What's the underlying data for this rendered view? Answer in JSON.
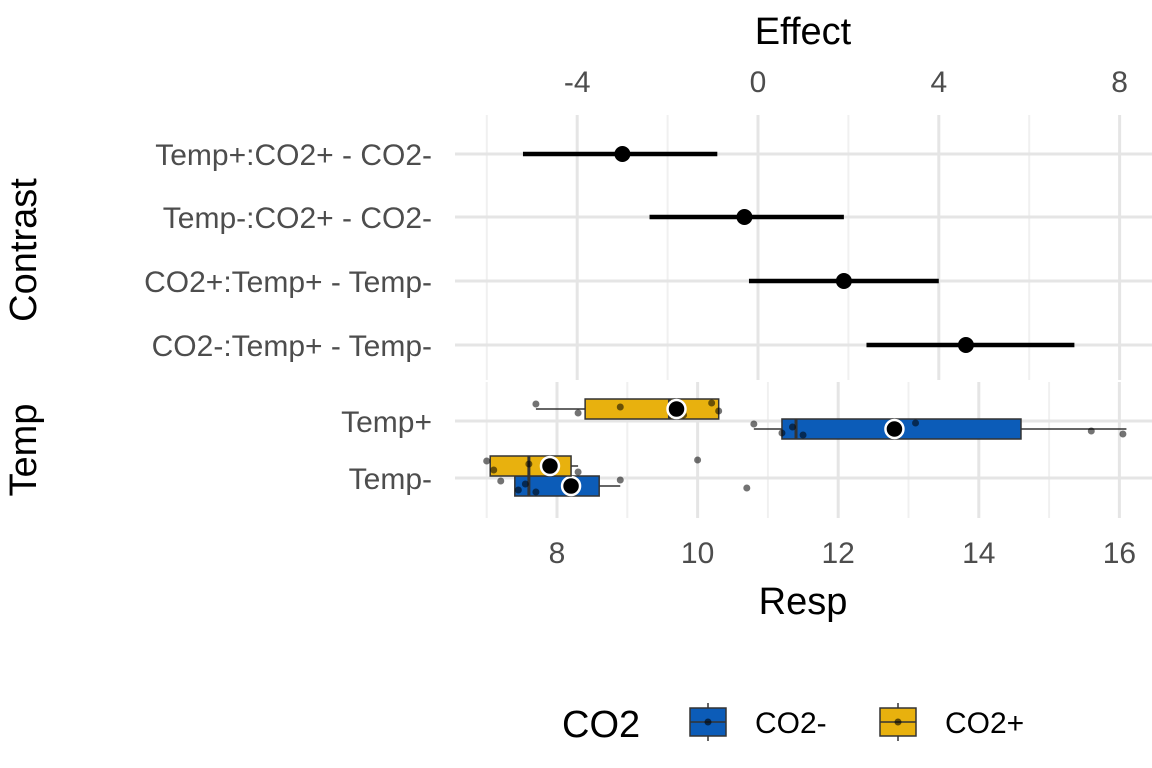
{
  "chart_data": [
    {
      "type": "errorbar",
      "panel": "top",
      "xlabel": "Effect",
      "ylabel": "Contrast",
      "xlim": [
        -6.8,
        8.9
      ],
      "xticks": [
        -4,
        0,
        4,
        8
      ],
      "xtick_labels": [
        "-4",
        "0",
        "4",
        "8"
      ],
      "categories": [
        "Temp+:CO2+ - CO2-",
        "Temp-:CO2+ - CO2-",
        "CO2+:Temp+ - Temp-",
        "CO2-:Temp+ - Temp-"
      ],
      "estimates": [
        -3.0,
        -0.3,
        1.9,
        4.6
      ],
      "lower": [
        -5.2,
        -2.4,
        -0.2,
        2.4
      ],
      "upper": [
        -0.9,
        1.9,
        4.0,
        7.0
      ],
      "grid": true
    },
    {
      "type": "boxplot",
      "panel": "bottom",
      "xlabel": "Resp",
      "ylabel": "Temp",
      "xlim": [
        6.8,
        16.3
      ],
      "xticks": [
        8,
        10,
        12,
        14,
        16
      ],
      "xtick_labels": [
        "8",
        "10",
        "12",
        "14",
        "16"
      ],
      "categories": [
        "Temp+",
        "Temp-"
      ],
      "legend": {
        "title": "CO2",
        "entries": [
          "CO2-",
          "CO2+"
        ],
        "position": "bottom"
      },
      "grid": true,
      "series": [
        {
          "name": "CO2-",
          "color": "#0c5cb8",
          "boxes": [
            {
              "category": "Temp+",
              "whisker_low": 10.8,
              "q1": 11.2,
              "median": 11.4,
              "q3": 14.6,
              "whisker_high": 16.1,
              "mean": 12.8,
              "points": [
                10.8,
                11.2,
                11.35,
                11.5,
                13.1,
                15.6,
                16.05
              ]
            },
            {
              "category": "Temp-",
              "whisker_low": 7.4,
              "q1": 7.4,
              "median": 7.6,
              "q3": 8.6,
              "whisker_high": 8.9,
              "mean": 8.2,
              "points": [
                7.2,
                7.45,
                7.55,
                7.7,
                8.9,
                10.7
              ]
            }
          ]
        },
        {
          "name": "CO2+",
          "color": "#e8b10e",
          "boxes": [
            {
              "category": "Temp+",
              "whisker_low": 7.7,
              "q1": 8.4,
              "median": 9.6,
              "q3": 10.3,
              "whisker_high": 10.3,
              "mean": 9.7,
              "points": [
                7.7,
                8.3,
                8.9,
                9.8,
                10.2,
                10.3
              ]
            },
            {
              "category": "Temp-",
              "whisker_low": 7.05,
              "q1": 7.05,
              "median": 7.6,
              "q3": 8.2,
              "whisker_high": 8.3,
              "mean": 7.9,
              "points": [
                7.0,
                7.1,
                7.6,
                8.3,
                10.0
              ]
            }
          ]
        }
      ]
    }
  ]
}
